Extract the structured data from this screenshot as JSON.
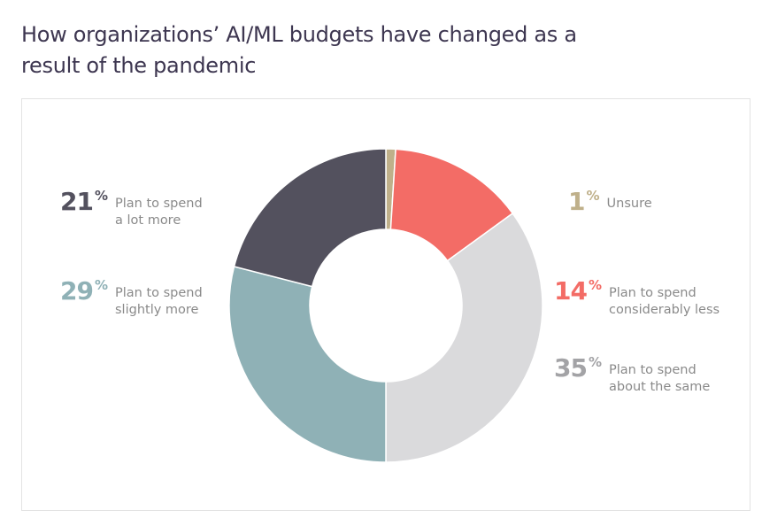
{
  "title": "How organizations’ AI/ML budgets have changed as a result of the pandemic",
  "chart_data": {
    "type": "pie",
    "donut": true,
    "title": "How organizations’ AI/ML budgets have changed as a result of the pandemic",
    "series": [
      {
        "label": "Unsure",
        "value": 1,
        "display": "1",
        "unit": "%",
        "color": "#bfb08a"
      },
      {
        "label": "Plan to spend considerably less",
        "value": 14,
        "display": "14",
        "unit": "%",
        "color": "#f36c66"
      },
      {
        "label": "Plan to spend about the same",
        "value": 35,
        "display": "35",
        "unit": "%",
        "color": "#dadadc"
      },
      {
        "label": "Plan to spend slightly more",
        "value": 29,
        "display": "29",
        "unit": "%",
        "color": "#8fb1b6"
      },
      {
        "label": "Plan to spend a lot more",
        "value": 21,
        "display": "21",
        "unit": "%",
        "color": "#53515e"
      }
    ],
    "labels": {
      "unsure": {
        "value": "1",
        "unit": "%",
        "text": "Unsure",
        "color": "#bfb08a"
      },
      "less": {
        "value": "14",
        "unit": "%",
        "text": "Plan to spend\nconsiderably less",
        "color": "#f36c66"
      },
      "same": {
        "value": "35",
        "unit": "%",
        "text": "Plan to spend\nabout the same",
        "color": "#a3a3a6"
      },
      "slightly": {
        "value": "29",
        "unit": "%",
        "text": "Plan to spend\nslightly more",
        "color": "#8fb1b6"
      },
      "lot": {
        "value": "21",
        "unit": "%",
        "text": "Plan to spend\na lot more",
        "color": "#53515e"
      }
    }
  }
}
